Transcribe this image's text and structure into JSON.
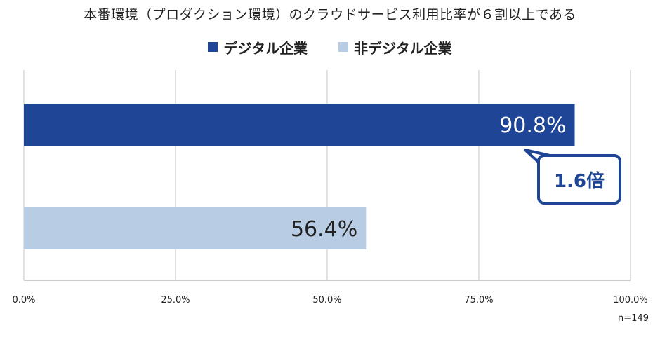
{
  "title": "本番環境（プロダクション環境）のクラウドサービス利用比率が６割以上である",
  "legend": [
    {
      "label": "デジタル企業",
      "color": "#1f4597"
    },
    {
      "label": "非デジタル企業",
      "color": "#b8cce4"
    }
  ],
  "chart_data": {
    "type": "bar",
    "orientation": "horizontal",
    "series": [
      {
        "name": "デジタル企業",
        "value": 90.8,
        "value_label": "90.8%",
        "color": "#1f4597"
      },
      {
        "name": "非デジタル企業",
        "value": 56.4,
        "value_label": "56.4%",
        "color": "#b8cce4"
      }
    ],
    "xlim": [
      0,
      100
    ],
    "x_ticks": [
      "0.0%",
      "25.0%",
      "50.0%",
      "75.0%",
      "100.0%"
    ],
    "grid": true,
    "legend_position": "top-center"
  },
  "callout": {
    "text": "1.6倍",
    "color": "#1f4597"
  },
  "sample_note": "n=149"
}
